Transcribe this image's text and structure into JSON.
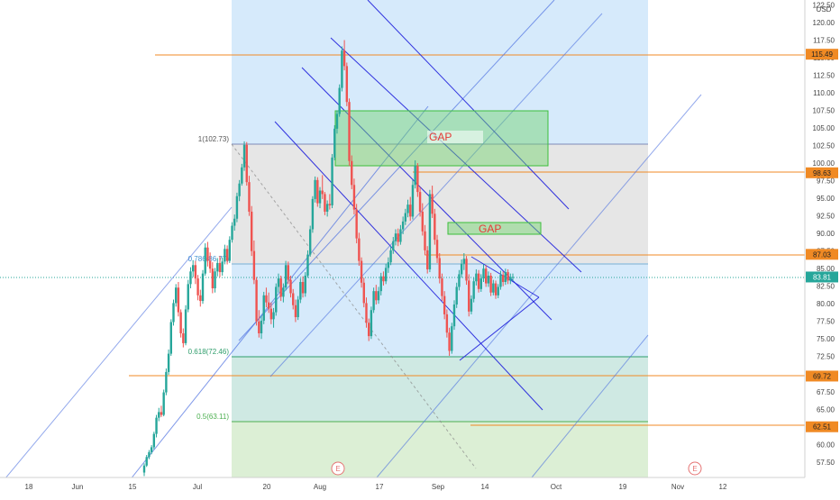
{
  "currency": "USD",
  "chart_data": {
    "type": "candlestick",
    "x_ticks": [
      "18",
      "Jun",
      "15",
      "Jul",
      "20",
      "Aug",
      "17",
      "Sep",
      "14",
      "Oct",
      "19",
      "Nov",
      "12"
    ],
    "y_ticks": [
      "57.50",
      "60.00",
      "62.50",
      "65.00",
      "67.50",
      "70.00",
      "72.50",
      "75.00",
      "77.50",
      "80.00",
      "82.50",
      "85.00",
      "87.50",
      "90.00",
      "92.50",
      "95.00",
      "97.50",
      "100.00",
      "102.50",
      "105.00",
      "107.50",
      "110.00",
      "112.50",
      "115.00",
      "117.50",
      "120.00",
      "122.50"
    ],
    "ylim": [
      55.3,
      123.2
    ],
    "levels": [
      {
        "label": "115.49",
        "value": 115.49,
        "color": "#f08a24"
      },
      {
        "label": "98.63",
        "value": 98.63,
        "color": "#f08a24"
      },
      {
        "label": "87.03",
        "value": 87.03,
        "color": "#f08a24"
      },
      {
        "label": "83.81",
        "value": 83.81,
        "color": "#26a69a"
      },
      {
        "label": "69.72",
        "value": 69.72,
        "color": "#f08a24"
      },
      {
        "label": "62.51",
        "value": 62.51,
        "color": "#f08a24"
      }
    ],
    "fib_labels": [
      {
        "text": "1(102.73)",
        "value": 102.73
      },
      {
        "text": "0.786(86.77)",
        "value": 86.77
      },
      {
        "text": "0.618(72.46)",
        "value": 72.46
      },
      {
        "text": "0.5(63.11)",
        "value": 63.11
      }
    ],
    "gap_label": "GAP",
    "earnings_marker": "E",
    "candles_ohlc": [
      [
        56.0,
        57.3,
        55.5,
        57.0
      ],
      [
        57.0,
        58.5,
        56.8,
        58.2
      ],
      [
        58.2,
        59.2,
        57.9,
        58.9
      ],
      [
        58.9,
        59.9,
        58.6,
        59.6
      ],
      [
        59.6,
        61.8,
        59.3,
        61.5
      ],
      [
        61.5,
        64.2,
        61.0,
        63.8
      ],
      [
        63.8,
        65.2,
        63.3,
        64.6
      ],
      [
        64.6,
        65.5,
        63.9,
        64.2
      ],
      [
        64.2,
        67.8,
        64.0,
        67.4
      ],
      [
        67.4,
        70.8,
        67.0,
        70.3
      ],
      [
        70.3,
        73.5,
        69.9,
        72.9
      ],
      [
        72.9,
        77.8,
        72.6,
        77.4
      ],
      [
        77.4,
        80.6,
        76.9,
        80.1
      ],
      [
        80.1,
        82.8,
        79.6,
        82.3
      ],
      [
        82.3,
        83.1,
        78.2,
        78.8
      ],
      [
        78.8,
        79.2,
        75.2,
        75.8
      ],
      [
        75.8,
        76.5,
        73.8,
        74.4
      ],
      [
        74.4,
        79.8,
        74.1,
        79.2
      ],
      [
        79.2,
        83.4,
        78.8,
        82.8
      ],
      [
        82.8,
        85.2,
        82.2,
        84.6
      ],
      [
        84.6,
        86.2,
        83.8,
        85.5
      ],
      [
        85.5,
        86.1,
        82.8,
        83.6
      ],
      [
        83.6,
        84.1,
        80.5,
        81.2
      ],
      [
        81.2,
        82.0,
        79.6,
        80.4
      ],
      [
        80.4,
        84.8,
        80.0,
        84.3
      ],
      [
        84.3,
        88.6,
        84.0,
        88.0
      ],
      [
        88.0,
        88.8,
        85.3,
        86.1
      ],
      [
        86.1,
        87.3,
        84.4,
        85.0
      ],
      [
        85.0,
        85.9,
        81.5,
        82.2
      ],
      [
        82.2,
        85.1,
        81.6,
        84.6
      ],
      [
        84.6,
        86.5,
        83.9,
        85.8
      ],
      [
        85.8,
        86.8,
        83.8,
        84.5
      ],
      [
        84.5,
        86.6,
        84.0,
        86.0
      ],
      [
        86.0,
        88.4,
        85.6,
        87.8
      ],
      [
        87.8,
        88.3,
        85.6,
        86.1
      ],
      [
        86.1,
        89.6,
        85.8,
        89.1
      ],
      [
        89.1,
        91.6,
        88.7,
        91.1
      ],
      [
        91.1,
        92.7,
        90.4,
        92.1
      ],
      [
        92.1,
        95.8,
        91.6,
        95.3
      ],
      [
        95.3,
        97.6,
        94.6,
        97.1
      ],
      [
        97.1,
        99.9,
        96.8,
        99.4
      ],
      [
        99.4,
        103.1,
        98.9,
        102.6
      ],
      [
        102.6,
        103.0,
        96.8,
        97.3
      ],
      [
        97.3,
        98.2,
        92.5,
        93.1
      ],
      [
        93.1,
        93.9,
        86.8,
        87.5
      ],
      [
        87.5,
        89.0,
        82.8,
        83.4
      ],
      [
        83.4,
        83.8,
        76.9,
        77.5
      ],
      [
        77.5,
        79.1,
        75.2,
        75.8
      ],
      [
        75.8,
        78.3,
        75.0,
        77.6
      ],
      [
        77.6,
        81.7,
        77.1,
        81.2
      ],
      [
        81.2,
        82.3,
        79.5,
        80.2
      ],
      [
        80.2,
        81.6,
        78.7,
        79.3
      ],
      [
        79.3,
        80.2,
        77.1,
        77.8
      ],
      [
        77.8,
        79.4,
        76.6,
        78.8
      ],
      [
        78.8,
        82.9,
        78.3,
        82.4
      ],
      [
        82.4,
        84.3,
        81.6,
        83.6
      ],
      [
        83.6,
        84.0,
        80.4,
        81.0
      ],
      [
        81.0,
        82.9,
        80.2,
        82.3
      ],
      [
        82.3,
        86.1,
        81.9,
        85.5
      ],
      [
        85.5,
        86.0,
        82.8,
        83.4
      ],
      [
        83.4,
        84.0,
        80.9,
        81.5
      ],
      [
        81.5,
        82.1,
        79.2,
        79.8
      ],
      [
        79.8,
        80.6,
        77.4,
        78.1
      ],
      [
        78.1,
        81.1,
        77.7,
        80.6
      ],
      [
        80.6,
        83.6,
        80.1,
        83.1
      ],
      [
        83.1,
        83.9,
        80.9,
        81.5
      ],
      [
        81.5,
        84.5,
        81.0,
        84.0
      ],
      [
        84.0,
        87.6,
        83.7,
        87.0
      ],
      [
        87.0,
        91.1,
        86.7,
        90.6
      ],
      [
        90.6,
        95.3,
        90.1,
        94.9
      ],
      [
        94.9,
        98.1,
        94.4,
        97.6
      ],
      [
        97.6,
        98.0,
        93.8,
        94.3
      ],
      [
        94.3,
        96.6,
        93.6,
        96.1
      ],
      [
        96.1,
        98.3,
        94.9,
        95.6
      ],
      [
        95.6,
        95.9,
        92.6,
        93.1
      ],
      [
        93.1,
        94.7,
        92.4,
        94.2
      ],
      [
        94.2,
        95.6,
        93.4,
        94.0
      ],
      [
        94.0,
        101.3,
        93.6,
        100.8
      ],
      [
        100.8,
        105.4,
        100.4,
        104.9
      ],
      [
        104.9,
        107.5,
        104.2,
        107.0
      ],
      [
        107.0,
        111.2,
        106.6,
        110.7
      ],
      [
        110.7,
        116.6,
        110.2,
        116.0
      ],
      [
        116.0,
        117.5,
        113.2,
        113.8
      ],
      [
        113.8,
        114.3,
        108.1,
        108.7
      ],
      [
        108.7,
        109.2,
        99.6,
        100.3
      ],
      [
        100.3,
        101.1,
        96.3,
        96.9
      ],
      [
        96.9,
        97.8,
        92.7,
        93.4
      ],
      [
        93.4,
        94.2,
        88.6,
        89.3
      ],
      [
        89.3,
        90.1,
        85.4,
        86.1
      ],
      [
        86.1,
        86.6,
        82.3,
        83.0
      ],
      [
        83.0,
        83.7,
        79.5,
        80.1
      ],
      [
        80.1,
        80.9,
        76.6,
        77.3
      ],
      [
        77.3,
        77.9,
        74.7,
        75.4
      ],
      [
        75.4,
        79.6,
        75.0,
        79.1
      ],
      [
        79.1,
        82.3,
        78.7,
        81.8
      ],
      [
        81.8,
        82.7,
        79.9,
        80.5
      ],
      [
        80.5,
        82.4,
        80.0,
        81.8
      ],
      [
        81.8,
        84.4,
        81.2,
        83.9
      ],
      [
        83.9,
        84.6,
        82.6,
        83.2
      ],
      [
        83.2,
        85.7,
        82.8,
        85.1
      ],
      [
        85.1,
        86.6,
        84.4,
        85.9
      ],
      [
        85.9,
        88.2,
        85.5,
        87.6
      ],
      [
        87.6,
        89.5,
        87.1,
        88.9
      ],
      [
        88.9,
        90.6,
        88.3,
        90.0
      ],
      [
        90.0,
        90.7,
        88.2,
        88.8
      ],
      [
        88.8,
        91.2,
        88.4,
        90.6
      ],
      [
        90.6,
        92.4,
        89.9,
        91.7
      ],
      [
        91.7,
        93.5,
        91.2,
        92.9
      ],
      [
        92.9,
        94.8,
        92.3,
        94.1
      ],
      [
        94.1,
        95.2,
        91.8,
        92.4
      ],
      [
        92.4,
        97.6,
        92.0,
        96.9
      ],
      [
        96.9,
        100.4,
        96.4,
        99.6
      ],
      [
        99.6,
        100.0,
        95.2,
        95.9
      ],
      [
        95.9,
        96.6,
        92.4,
        93.1
      ],
      [
        93.1,
        94.3,
        89.7,
        90.3
      ],
      [
        90.3,
        91.2,
        86.9,
        87.6
      ],
      [
        87.6,
        88.2,
        84.3,
        84.9
      ],
      [
        84.9,
        96.2,
        84.5,
        95.6
      ],
      [
        95.6,
        96.8,
        92.2,
        92.8
      ],
      [
        92.8,
        93.5,
        88.4,
        89.1
      ],
      [
        89.1,
        89.8,
        85.8,
        86.5
      ],
      [
        86.5,
        87.2,
        82.9,
        83.6
      ],
      [
        83.6,
        84.3,
        80.4,
        81.1
      ],
      [
        81.1,
        81.8,
        77.8,
        78.5
      ],
      [
        78.5,
        79.2,
        75.2,
        75.9
      ],
      [
        75.9,
        76.6,
        72.6,
        73.3
      ],
      [
        73.3,
        77.3,
        72.9,
        76.8
      ],
      [
        76.8,
        80.5,
        76.3,
        79.9
      ],
      [
        79.9,
        83.0,
        79.4,
        82.4
      ],
      [
        82.4,
        84.8,
        81.9,
        84.2
      ],
      [
        84.2,
        86.3,
        83.7,
        85.7
      ],
      [
        85.7,
        87.2,
        84.8,
        86.4
      ],
      [
        86.4,
        86.8,
        82.7,
        83.3
      ],
      [
        83.3,
        84.2,
        78.2,
        78.9
      ],
      [
        78.9,
        81.2,
        78.5,
        80.7
      ],
      [
        80.7,
        83.7,
        80.2,
        83.2
      ],
      [
        83.2,
        84.9,
        82.6,
        84.3
      ],
      [
        84.3,
        84.8,
        81.6,
        82.1
      ],
      [
        82.1,
        84.2,
        81.7,
        83.6
      ],
      [
        83.6,
        85.6,
        83.1,
        85.0
      ],
      [
        85.0,
        85.5,
        82.4,
        82.9
      ],
      [
        82.9,
        84.6,
        82.4,
        84.0
      ],
      [
        84.0,
        84.4,
        81.1,
        81.6
      ],
      [
        81.6,
        83.4,
        81.2,
        82.9
      ],
      [
        82.9,
        83.3,
        80.7,
        81.2
      ],
      [
        81.2,
        82.8,
        80.8,
        82.4
      ],
      [
        82.4,
        84.7,
        82.0,
        84.1
      ],
      [
        84.1,
        84.6,
        82.5,
        83.1
      ],
      [
        83.1,
        85.0,
        82.7,
        84.5
      ],
      [
        84.5,
        84.9,
        82.8,
        83.3
      ],
      [
        83.3,
        84.3,
        82.8,
        83.8
      ],
      [
        83.8,
        84.3,
        83.2,
        83.81
      ]
    ]
  }
}
